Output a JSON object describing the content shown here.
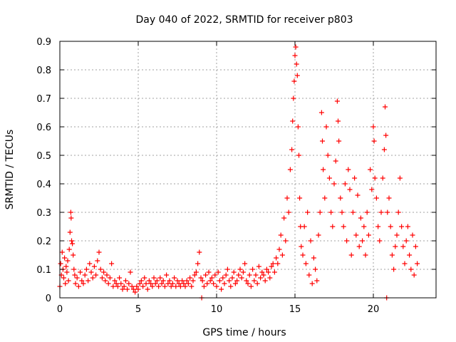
{
  "chart_data": {
    "type": "scatter",
    "title": "Day 040 of 2022, SRMTID for receiver p803",
    "xlabel": "GPS time / hours",
    "ylabel": "SRMTID / TECUs",
    "xlim": [
      0,
      24
    ],
    "ylim": [
      0,
      0.9
    ],
    "x_ticks": [
      0,
      5,
      10,
      15,
      20
    ],
    "x_tick_labels": [
      "0",
      "5",
      "10",
      "15",
      "20"
    ],
    "y_ticks": [
      0,
      0.1,
      0.2,
      0.3,
      0.4,
      0.5,
      0.6,
      0.7,
      0.8,
      0.9
    ],
    "y_tick_labels": [
      "0",
      "0.1",
      "0.2",
      "0.3",
      "0.4",
      "0.5",
      "0.6",
      "0.7",
      "0.8",
      "0.9"
    ],
    "grid": true,
    "marker": "+",
    "series": [
      {
        "name": "SRMTID",
        "color": "#ff0000",
        "points": [
          [
            0.0,
            0.04
          ],
          [
            0.05,
            0.12
          ],
          [
            0.1,
            0.08
          ],
          [
            0.15,
            0.16
          ],
          [
            0.2,
            0.1
          ],
          [
            0.25,
            0.07
          ],
          [
            0.3,
            0.14
          ],
          [
            0.35,
            0.05
          ],
          [
            0.4,
            0.11
          ],
          [
            0.45,
            0.09
          ],
          [
            0.5,
            0.13
          ],
          [
            0.55,
            0.06
          ],
          [
            0.6,
            0.17
          ],
          [
            0.65,
            0.23
          ],
          [
            0.7,
            0.3
          ],
          [
            0.72,
            0.28
          ],
          [
            0.75,
            0.2
          ],
          [
            0.8,
            0.19
          ],
          [
            0.85,
            0.15
          ],
          [
            0.9,
            0.1
          ],
          [
            0.95,
            0.08
          ],
          [
            1.0,
            0.05
          ],
          [
            1.1,
            0.07
          ],
          [
            1.2,
            0.04
          ],
          [
            1.3,
            0.09
          ],
          [
            1.4,
            0.06
          ],
          [
            1.5,
            0.05
          ],
          [
            1.6,
            0.08
          ],
          [
            1.7,
            0.1
          ],
          [
            1.8,
            0.06
          ],
          [
            1.9,
            0.12
          ],
          [
            2.0,
            0.09
          ],
          [
            2.1,
            0.07
          ],
          [
            2.2,
            0.11
          ],
          [
            2.3,
            0.08
          ],
          [
            2.4,
            0.13
          ],
          [
            2.5,
            0.16
          ],
          [
            2.6,
            0.1
          ],
          [
            2.7,
            0.07
          ],
          [
            2.8,
            0.09
          ],
          [
            2.9,
            0.06
          ],
          [
            3.0,
            0.08
          ],
          [
            3.1,
            0.05
          ],
          [
            3.2,
            0.07
          ],
          [
            3.3,
            0.12
          ],
          [
            3.4,
            0.04
          ],
          [
            3.5,
            0.06
          ],
          [
            3.6,
            0.05
          ],
          [
            3.7,
            0.04
          ],
          [
            3.8,
            0.07
          ],
          [
            3.9,
            0.05
          ],
          [
            4.0,
            0.03
          ],
          [
            4.1,
            0.04
          ],
          [
            4.2,
            0.06
          ],
          [
            4.3,
            0.03
          ],
          [
            4.4,
            0.05
          ],
          [
            4.5,
            0.09
          ],
          [
            4.6,
            0.04
          ],
          [
            4.7,
            0.03
          ],
          [
            4.8,
            0.02
          ],
          [
            4.9,
            0.04
          ],
          [
            5.0,
            0.03
          ],
          [
            5.1,
            0.05
          ],
          [
            5.2,
            0.06
          ],
          [
            5.3,
            0.04
          ],
          [
            5.4,
            0.07
          ],
          [
            5.5,
            0.05
          ],
          [
            5.6,
            0.03
          ],
          [
            5.7,
            0.06
          ],
          [
            5.8,
            0.05
          ],
          [
            5.9,
            0.04
          ],
          [
            6.0,
            0.07
          ],
          [
            6.1,
            0.05
          ],
          [
            6.2,
            0.06
          ],
          [
            6.3,
            0.04
          ],
          [
            6.4,
            0.07
          ],
          [
            6.5,
            0.05
          ],
          [
            6.6,
            0.06
          ],
          [
            6.7,
            0.04
          ],
          [
            6.8,
            0.08
          ],
          [
            6.9,
            0.05
          ],
          [
            7.0,
            0.06
          ],
          [
            7.1,
            0.04
          ],
          [
            7.2,
            0.05
          ],
          [
            7.3,
            0.07
          ],
          [
            7.4,
            0.04
          ],
          [
            7.5,
            0.06
          ],
          [
            7.6,
            0.05
          ],
          [
            7.7,
            0.04
          ],
          [
            7.8,
            0.06
          ],
          [
            7.9,
            0.05
          ],
          [
            8.0,
            0.04
          ],
          [
            8.1,
            0.06
          ],
          [
            8.2,
            0.05
          ],
          [
            8.3,
            0.07
          ],
          [
            8.4,
            0.04
          ],
          [
            8.5,
            0.06
          ],
          [
            8.6,
            0.08
          ],
          [
            8.7,
            0.09
          ],
          [
            8.8,
            0.12
          ],
          [
            8.9,
            0.16
          ],
          [
            9.0,
            0.07
          ],
          [
            9.05,
            0.0
          ],
          [
            9.1,
            0.06
          ],
          [
            9.2,
            0.04
          ],
          [
            9.3,
            0.08
          ],
          [
            9.4,
            0.05
          ],
          [
            9.5,
            0.09
          ],
          [
            9.6,
            0.06
          ],
          [
            9.7,
            0.07
          ],
          [
            9.8,
            0.05
          ],
          [
            9.9,
            0.08
          ],
          [
            10.0,
            0.04
          ],
          [
            10.1,
            0.09
          ],
          [
            10.2,
            0.06
          ],
          [
            10.3,
            0.03
          ],
          [
            10.4,
            0.07
          ],
          [
            10.5,
            0.05
          ],
          [
            10.6,
            0.08
          ],
          [
            10.7,
            0.1
          ],
          [
            10.8,
            0.06
          ],
          [
            10.9,
            0.04
          ],
          [
            11.0,
            0.07
          ],
          [
            11.1,
            0.09
          ],
          [
            11.2,
            0.05
          ],
          [
            11.3,
            0.06
          ],
          [
            11.4,
            0.08
          ],
          [
            11.5,
            0.1
          ],
          [
            11.6,
            0.07
          ],
          [
            11.7,
            0.09
          ],
          [
            11.8,
            0.12
          ],
          [
            11.9,
            0.06
          ],
          [
            12.0,
            0.05
          ],
          [
            12.1,
            0.08
          ],
          [
            12.2,
            0.04
          ],
          [
            12.3,
            0.1
          ],
          [
            12.4,
            0.06
          ],
          [
            12.5,
            0.08
          ],
          [
            12.6,
            0.05
          ],
          [
            12.7,
            0.11
          ],
          [
            12.8,
            0.07
          ],
          [
            12.9,
            0.09
          ],
          [
            13.0,
            0.08
          ],
          [
            13.1,
            0.06
          ],
          [
            13.2,
            0.1
          ],
          [
            13.3,
            0.09
          ],
          [
            13.4,
            0.07
          ],
          [
            13.5,
            0.11
          ],
          [
            13.6,
            0.12
          ],
          [
            13.7,
            0.09
          ],
          [
            13.8,
            0.14
          ],
          [
            13.9,
            0.12
          ],
          [
            14.0,
            0.17
          ],
          [
            14.1,
            0.22
          ],
          [
            14.2,
            0.15
          ],
          [
            14.3,
            0.28
          ],
          [
            14.4,
            0.2
          ],
          [
            14.5,
            0.35
          ],
          [
            14.6,
            0.3
          ],
          [
            14.7,
            0.45
          ],
          [
            14.8,
            0.52
          ],
          [
            14.85,
            0.62
          ],
          [
            14.9,
            0.7
          ],
          [
            14.95,
            0.76
          ],
          [
            15.0,
            0.85
          ],
          [
            15.05,
            0.88
          ],
          [
            15.1,
            0.82
          ],
          [
            15.15,
            0.78
          ],
          [
            15.2,
            0.6
          ],
          [
            15.25,
            0.5
          ],
          [
            15.3,
            0.35
          ],
          [
            15.35,
            0.25
          ],
          [
            15.4,
            0.18
          ],
          [
            15.5,
            0.15
          ],
          [
            15.6,
            0.25
          ],
          [
            15.7,
            0.12
          ],
          [
            15.8,
            0.3
          ],
          [
            15.9,
            0.08
          ],
          [
            16.0,
            0.2
          ],
          [
            16.1,
            0.05
          ],
          [
            16.2,
            0.14
          ],
          [
            16.3,
            0.1
          ],
          [
            16.4,
            0.06
          ],
          [
            16.5,
            0.22
          ],
          [
            16.6,
            0.3
          ],
          [
            16.7,
            0.65
          ],
          [
            16.75,
            0.55
          ],
          [
            16.8,
            0.45
          ],
          [
            16.9,
            0.35
          ],
          [
            17.0,
            0.6
          ],
          [
            17.1,
            0.5
          ],
          [
            17.2,
            0.42
          ],
          [
            17.3,
            0.3
          ],
          [
            17.4,
            0.25
          ],
          [
            17.5,
            0.4
          ],
          [
            17.6,
            0.48
          ],
          [
            17.7,
            0.69
          ],
          [
            17.75,
            0.62
          ],
          [
            17.8,
            0.55
          ],
          [
            17.9,
            0.35
          ],
          [
            18.0,
            0.3
          ],
          [
            18.1,
            0.25
          ],
          [
            18.2,
            0.4
          ],
          [
            18.3,
            0.2
          ],
          [
            18.4,
            0.45
          ],
          [
            18.5,
            0.38
          ],
          [
            18.6,
            0.15
          ],
          [
            18.7,
            0.3
          ],
          [
            18.8,
            0.42
          ],
          [
            18.9,
            0.22
          ],
          [
            19.0,
            0.36
          ],
          [
            19.1,
            0.18
          ],
          [
            19.2,
            0.28
          ],
          [
            19.3,
            0.2
          ],
          [
            19.4,
            0.25
          ],
          [
            19.5,
            0.15
          ],
          [
            19.6,
            0.3
          ],
          [
            19.7,
            0.22
          ],
          [
            19.8,
            0.45
          ],
          [
            19.9,
            0.38
          ],
          [
            20.0,
            0.6
          ],
          [
            20.05,
            0.55
          ],
          [
            20.1,
            0.42
          ],
          [
            20.2,
            0.35
          ],
          [
            20.3,
            0.25
          ],
          [
            20.4,
            0.2
          ],
          [
            20.5,
            0.3
          ],
          [
            20.6,
            0.42
          ],
          [
            20.7,
            0.52
          ],
          [
            20.75,
            0.67
          ],
          [
            20.8,
            0.57
          ],
          [
            20.85,
            0.0
          ],
          [
            20.9,
            0.3
          ],
          [
            21.0,
            0.35
          ],
          [
            21.1,
            0.25
          ],
          [
            21.2,
            0.15
          ],
          [
            21.3,
            0.1
          ],
          [
            21.4,
            0.18
          ],
          [
            21.5,
            0.22
          ],
          [
            21.6,
            0.3
          ],
          [
            21.7,
            0.42
          ],
          [
            21.8,
            0.25
          ],
          [
            21.9,
            0.18
          ],
          [
            22.0,
            0.12
          ],
          [
            22.1,
            0.2
          ],
          [
            22.2,
            0.25
          ],
          [
            22.3,
            0.15
          ],
          [
            22.4,
            0.1
          ],
          [
            22.5,
            0.22
          ],
          [
            22.6,
            0.08
          ],
          [
            22.7,
            0.18
          ],
          [
            22.8,
            0.12
          ]
        ]
      }
    ]
  }
}
